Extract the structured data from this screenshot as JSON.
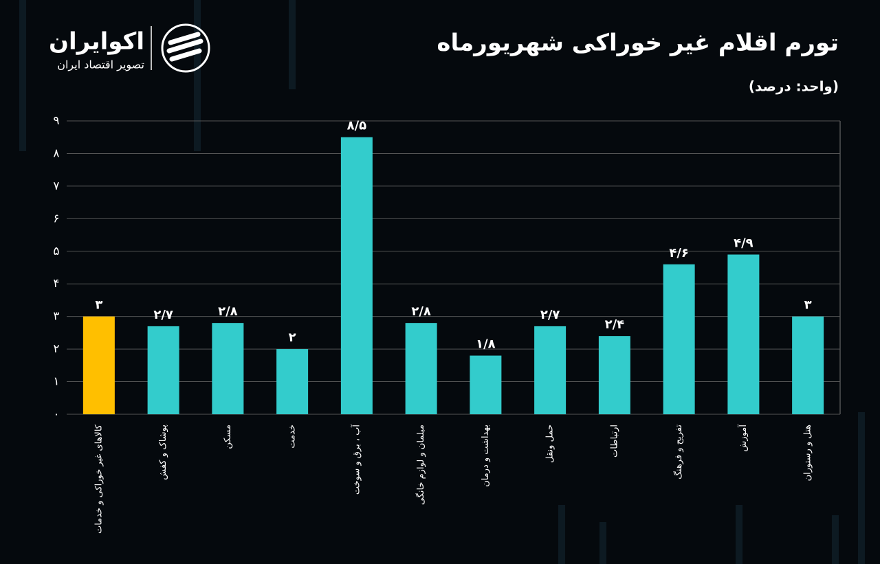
{
  "chart_data": {
    "type": "bar",
    "title": "تورم اقلام غیر خوراکی شهریورماه",
    "subtitle": "(واحد: درصد)",
    "logo_name": "اکوایران",
    "logo_tagline": "تصویر اقتصاد ایران",
    "categories": [
      "کالاهای غیر خوراکی و خدمات",
      "پوشاک و کفش",
      "مسکن",
      "خدمت",
      "آب ، برق و سوخت",
      "مبلمان و لوازم خانگی",
      "بهداشت و درمان",
      "حمل ونقل",
      "ارتباطات",
      "تفریح و فرهنگ",
      "آموزش",
      "هتل و رستوران"
    ],
    "values": [
      3,
      2.7,
      2.8,
      2,
      8.5,
      2.8,
      1.8,
      2.7,
      2.4,
      4.6,
      4.9,
      3
    ],
    "value_labels": [
      "۳",
      "۲/۷",
      "۲/۸",
      "۲",
      "۸/۵",
      "۲/۸",
      "۱/۸",
      "۲/۷",
      "۲/۴",
      "۴/۶",
      "۴/۹",
      "۳"
    ],
    "colors": [
      "#ffbf00",
      "#33cccc",
      "#33cccc",
      "#33cccc",
      "#33cccc",
      "#33cccc",
      "#33cccc",
      "#33cccc",
      "#33cccc",
      "#33cccc",
      "#33cccc",
      "#33cccc"
    ],
    "ylim": [
      0,
      9
    ],
    "yticks": [
      {
        "value": 0,
        "label": "۰"
      },
      {
        "value": 1,
        "label": "۱"
      },
      {
        "value": 2,
        "label": "۲"
      },
      {
        "value": 3,
        "label": "۳"
      },
      {
        "value": 4,
        "label": "۴"
      },
      {
        "value": 5,
        "label": "۵"
      },
      {
        "value": 6,
        "label": "۶"
      },
      {
        "value": 7,
        "label": "۷"
      },
      {
        "value": 8,
        "label": "۸"
      },
      {
        "value": 9,
        "label": "۹"
      }
    ],
    "grid": true
  }
}
